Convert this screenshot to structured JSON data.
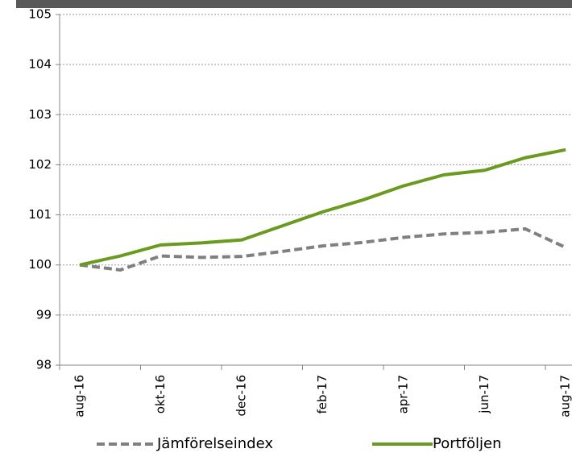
{
  "chart_data": {
    "type": "line",
    "categories": [
      "aug-16",
      null,
      "okt-16",
      null,
      "dec-16",
      null,
      "feb-17",
      null,
      "apr-17",
      null,
      "jun-17",
      null,
      "aug-17"
    ],
    "series": [
      {
        "name": "Jämförelseindex",
        "color": "#808080",
        "dashed": true,
        "values": [
          100,
          99.9,
          100.18,
          100.15,
          100.17,
          100.27,
          100.38,
          100.45,
          100.55,
          100.62,
          100.65,
          100.72,
          100.35
        ]
      },
      {
        "name": "Portföljen",
        "color": "#6a9a1f",
        "dashed": false,
        "values": [
          100,
          100.18,
          100.4,
          100.44,
          100.5,
          100.78,
          101.06,
          101.3,
          101.58,
          101.8,
          101.89,
          102.14,
          102.3
        ]
      }
    ],
    "ylim": [
      98,
      105
    ],
    "yticks": [
      98,
      99,
      100,
      101,
      102,
      103,
      104,
      105
    ],
    "grid": true,
    "legend": "bottom"
  }
}
